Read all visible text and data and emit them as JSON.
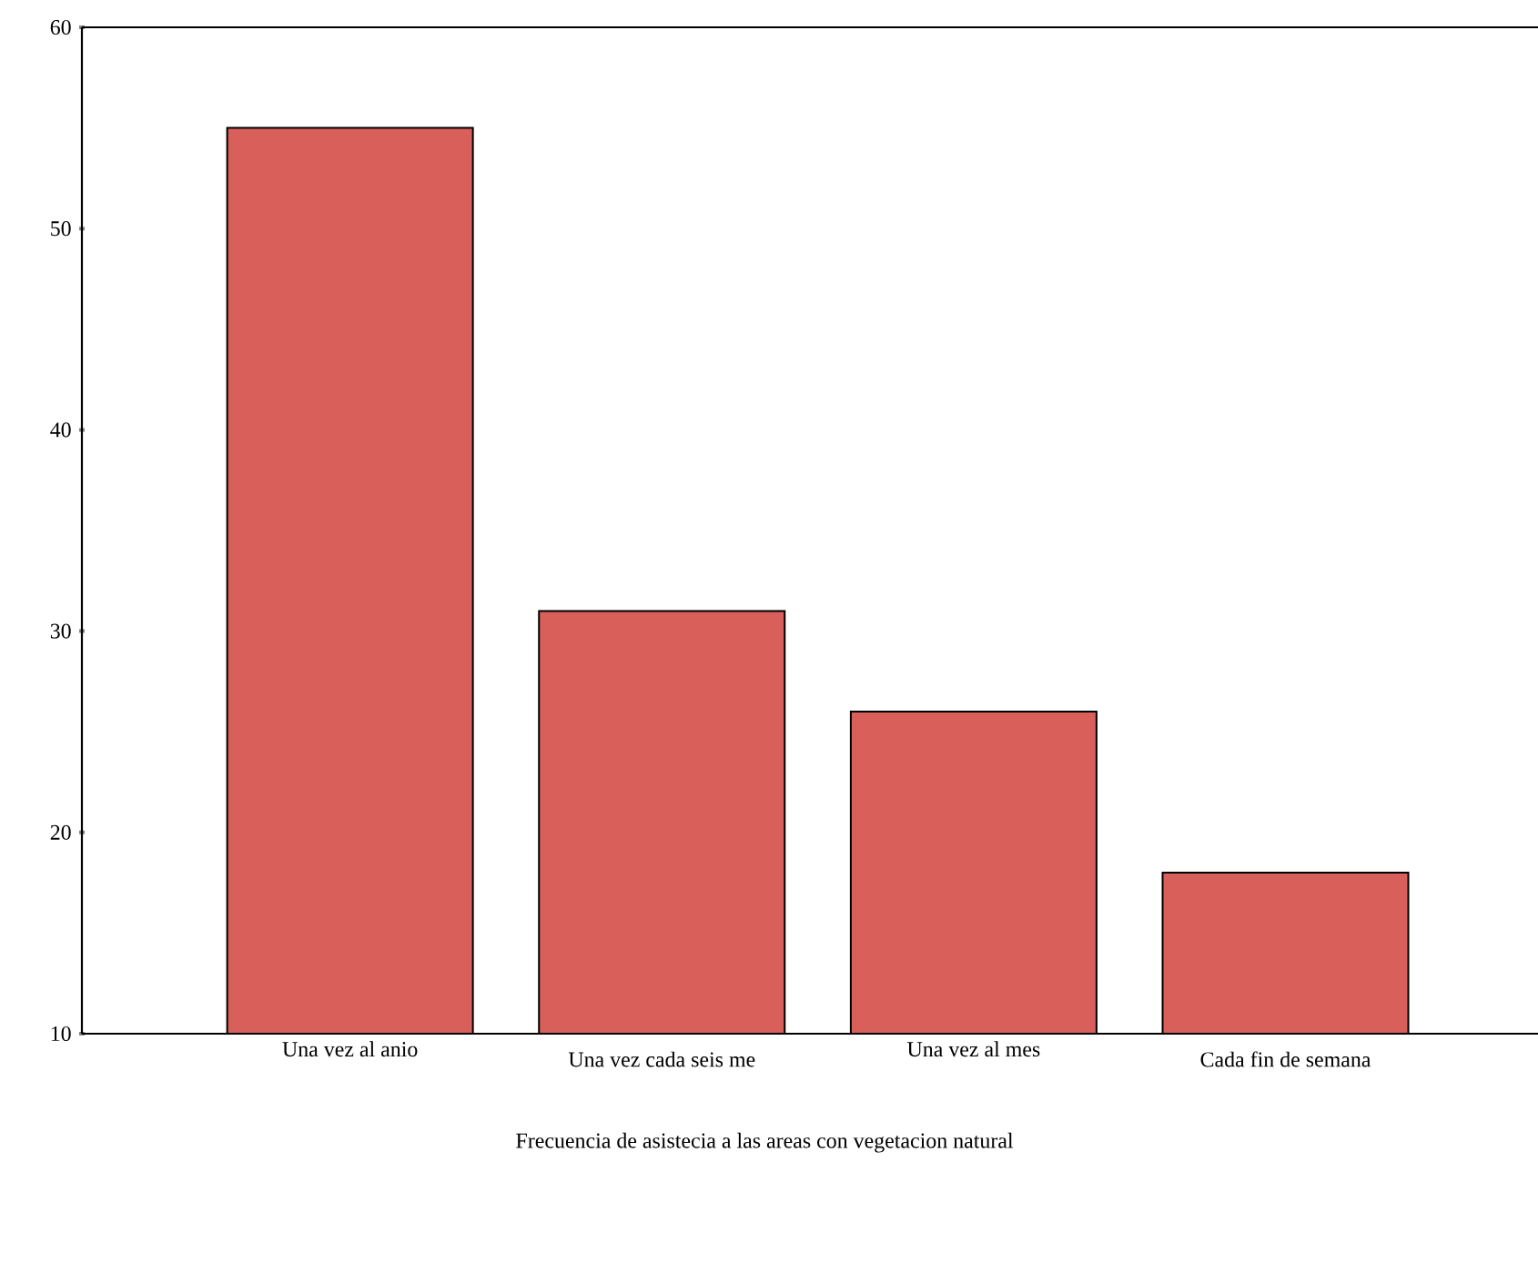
{
  "chart_data": {
    "type": "bar",
    "xlabel": "Frecuencia de asistecia a las areas con vegetacion natural",
    "categories": [
      "Una vez al anio",
      "Una vez cada seis me",
      "Una vez al mes",
      "Cada fin de semana"
    ],
    "values": [
      55,
      31,
      26,
      18
    ],
    "color": "#d95f5a",
    "ylim": [
      10,
      60
    ],
    "yticks": [
      10,
      20,
      30,
      40,
      50,
      60
    ]
  }
}
